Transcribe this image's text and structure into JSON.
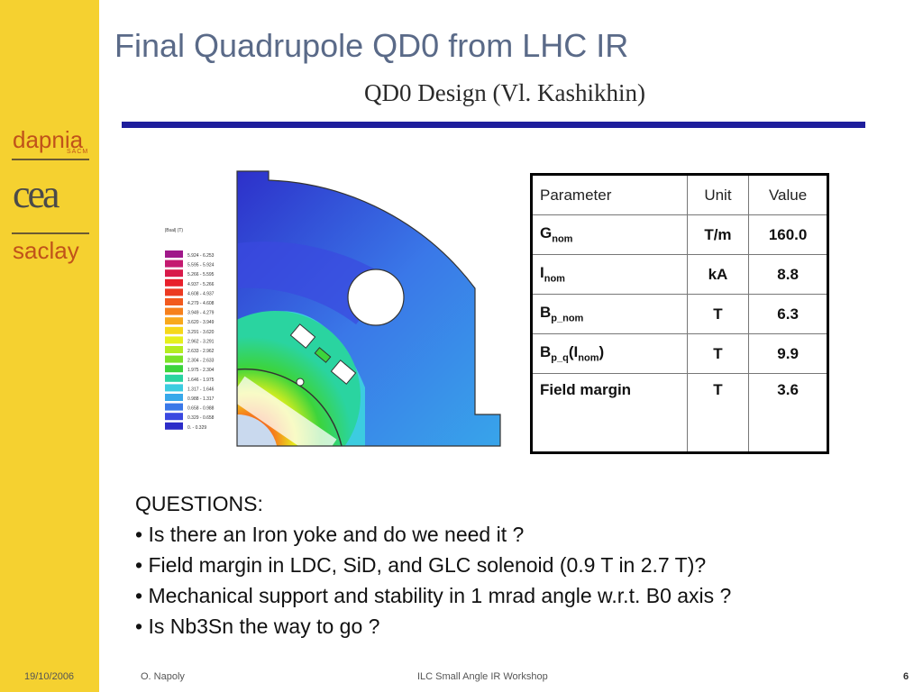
{
  "sidebar": {
    "logo_top": "dapnia",
    "logo_small": "SACM",
    "logo_mid": "cea",
    "logo_bottom": "saclay"
  },
  "slide": {
    "title": "Final Quadrupole QD0 from LHC IR",
    "subtitle": "QD0 Design (Vl. Kashikhin)"
  },
  "figure": {
    "legend_title": "|Bsal| (T)",
    "legend": [
      {
        "range": "5.924  -  6.253",
        "color": "#a0188a"
      },
      {
        "range": "5.595  -  5.924",
        "color": "#c41a70"
      },
      {
        "range": "5.266  -  5.595",
        "color": "#d81a4a"
      },
      {
        "range": "4.937  -  5.266",
        "color": "#e8202c"
      },
      {
        "range": "4.608  -  4.937",
        "color": "#ec3a22"
      },
      {
        "range": "4.279  -  4.608",
        "color": "#f25a1e"
      },
      {
        "range": "3.949  -  4.279",
        "color": "#f6801c"
      },
      {
        "range": "3.620  -  3.949",
        "color": "#f8a81c"
      },
      {
        "range": "3.291  -  3.620",
        "color": "#f6d81a"
      },
      {
        "range": "2.962  -  3.291",
        "color": "#e6f01c"
      },
      {
        "range": "2.633  -  2.962",
        "color": "#b4ec20"
      },
      {
        "range": "2.304  -  2.633",
        "color": "#7ae228"
      },
      {
        "range": "1.975  -  2.304",
        "color": "#3cd43c"
      },
      {
        "range": "1.646  -  1.975",
        "color": "#2ad4a0"
      },
      {
        "range": "1.317  -  1.646",
        "color": "#3ccce0"
      },
      {
        "range": "0.988  -  1.317",
        "color": "#38a8ea"
      },
      {
        "range": "0.658  -  0.988",
        "color": "#3a78e8"
      },
      {
        "range": "0.329  -  0.658",
        "color": "#3a48e0"
      },
      {
        "range": "0.      -  0.329",
        "color": "#2c2cc8"
      }
    ]
  },
  "table": {
    "headers": [
      "Parameter",
      "Unit",
      "Value"
    ],
    "rows": [
      {
        "param": "G",
        "sub": "nom",
        "unit": "T/m",
        "value": "160.0"
      },
      {
        "param": "I",
        "sub": "nom",
        "unit": "kA",
        "value": "8.8"
      },
      {
        "param": "B",
        "sub": "p_nom",
        "unit": "T",
        "value": "6.3"
      },
      {
        "param": "B",
        "sub": "p_q",
        "paren": "I",
        "paren_sub": "nom",
        "unit": "T",
        "value": "9.9"
      },
      {
        "param": "Field margin",
        "unit": "T",
        "value": "3.6"
      }
    ]
  },
  "questions": {
    "heading": "QUESTIONS:",
    "items": [
      "• Is there an Iron yoke and do we need it ?",
      "• Field margin in LDC, SiD, and GLC solenoid (0.9 T in 2.7 T)?",
      "• Mechanical support and stability in 1 mrad angle w.r.t. B0 axis ?",
      "• Is Nb3Sn the way to go ?"
    ]
  },
  "footer": {
    "date": "19/10/2006",
    "author": "O. Napoly",
    "event": "ILC Small Angle IR Workshop",
    "page": "6"
  }
}
